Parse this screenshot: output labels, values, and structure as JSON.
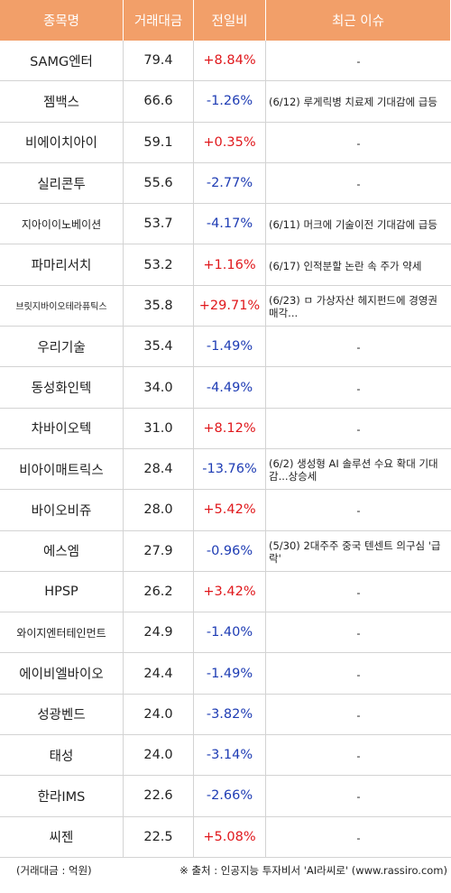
{
  "header": {
    "name": "종목명",
    "volume": "거래대금",
    "change": "전일비",
    "issue": "최근 이슈"
  },
  "rows": [
    {
      "name": "SAMG엔터",
      "volume": "79.4",
      "change": "+8.84%",
      "dir": "up",
      "issue": "-"
    },
    {
      "name": "젬백스",
      "volume": "66.6",
      "change": "-1.26%",
      "dir": "down",
      "issue": "(6/12) 루게릭병 치료제 기대감에 급등"
    },
    {
      "name": "비에이치아이",
      "volume": "59.1",
      "change": "+0.35%",
      "dir": "up",
      "issue": "-"
    },
    {
      "name": "실리콘투",
      "volume": "55.6",
      "change": "-2.77%",
      "dir": "down",
      "issue": "-"
    },
    {
      "name": "지아이이노베이션",
      "volume": "53.7",
      "change": "-4.17%",
      "dir": "down",
      "issue": "(6/11) 머크에 기술이전 기대감에 급등"
    },
    {
      "name": "파마리서치",
      "volume": "53.2",
      "change": "+1.16%",
      "dir": "up",
      "issue": "(6/17) 인적분할 논란 속 주가 약세"
    },
    {
      "name": "브릿지바이오테라퓨틱스",
      "volume": "35.8",
      "change": "+29.71%",
      "dir": "up",
      "issue": "(6/23) ㅁ 가상자산 헤지펀드에 경영권 매각..."
    },
    {
      "name": "우리기술",
      "volume": "35.4",
      "change": "-1.49%",
      "dir": "down",
      "issue": "-"
    },
    {
      "name": "동성화인텍",
      "volume": "34.0",
      "change": "-4.49%",
      "dir": "down",
      "issue": "-"
    },
    {
      "name": "차바이오텍",
      "volume": "31.0",
      "change": "+8.12%",
      "dir": "up",
      "issue": "-"
    },
    {
      "name": "비아이매트릭스",
      "volume": "28.4",
      "change": "-13.76%",
      "dir": "down",
      "issue": "(6/2) 생성형 AI 솔루션 수요 확대 기대감...상승세"
    },
    {
      "name": "바이오비쥬",
      "volume": "28.0",
      "change": "+5.42%",
      "dir": "up",
      "issue": "-"
    },
    {
      "name": "에스엠",
      "volume": "27.9",
      "change": "-0.96%",
      "dir": "down",
      "issue": "(5/30) 2대주주 중국 텐센트 의구심 '급락'"
    },
    {
      "name": "HPSP",
      "volume": "26.2",
      "change": "+3.42%",
      "dir": "up",
      "issue": "-"
    },
    {
      "name": "와이지엔터테인먼트",
      "volume": "24.9",
      "change": "-1.40%",
      "dir": "down",
      "issue": "-"
    },
    {
      "name": "에이비엘바이오",
      "volume": "24.4",
      "change": "-1.49%",
      "dir": "down",
      "issue": "-"
    },
    {
      "name": "성광벤드",
      "volume": "24.0",
      "change": "-3.82%",
      "dir": "down",
      "issue": "-"
    },
    {
      "name": "태성",
      "volume": "24.0",
      "change": "-3.14%",
      "dir": "down",
      "issue": "-"
    },
    {
      "name": "한라IMS",
      "volume": "22.6",
      "change": "-2.66%",
      "dir": "down",
      "issue": "-"
    },
    {
      "name": "씨젠",
      "volume": "22.5",
      "change": "+5.08%",
      "dir": "up",
      "issue": "-"
    }
  ],
  "footer": {
    "unit": "(거래대금 : 억원)",
    "source": "※ 출처 : 인공지능 투자비서 'AI라씨로' (www.rassiro.com)"
  },
  "colors": {
    "header_bg": "#f29f69",
    "up": "#e0181c",
    "down": "#1e3cb4"
  }
}
